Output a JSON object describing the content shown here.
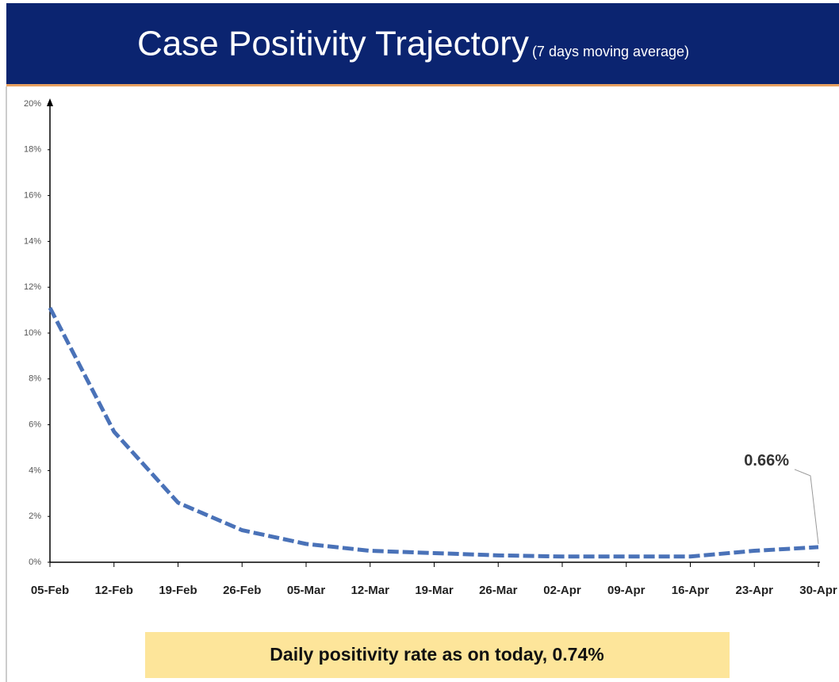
{
  "chart_data": {
    "type": "line",
    "title": "Case Positivity Trajectory",
    "subtitle": "(7 days moving average)",
    "categories": [
      "05-Feb",
      "12-Feb",
      "19-Feb",
      "26-Feb",
      "05-Mar",
      "12-Mar",
      "19-Mar",
      "26-Mar",
      "02-Apr",
      "09-Apr",
      "16-Apr",
      "23-Apr",
      "30-Apr"
    ],
    "series": [
      {
        "name": "Case Positivity",
        "color": "#4a72b8",
        "values": [
          11.1,
          5.7,
          2.6,
          1.4,
          0.8,
          0.5,
          0.4,
          0.3,
          0.25,
          0.25,
          0.25,
          0.5,
          0.66
        ],
        "value_labels": [
          null,
          null,
          null,
          null,
          null,
          null,
          null,
          null,
          null,
          null,
          null,
          null,
          "0.66%"
        ]
      }
    ],
    "ylim": [
      0,
      20
    ],
    "yticks": [
      {
        "value": 0,
        "label": "0%"
      },
      {
        "value": 2,
        "label": "2%"
      },
      {
        "value": 4,
        "label": "4%"
      },
      {
        "value": 6,
        "label": "6%"
      },
      {
        "value": 8,
        "label": "8%"
      },
      {
        "value": 10,
        "label": "10%"
      },
      {
        "value": 12,
        "label": "12%"
      },
      {
        "value": 14,
        "label": "14%"
      },
      {
        "value": 16,
        "label": "16%"
      },
      {
        "value": 18,
        "label": "18%"
      },
      {
        "value": 20,
        "label": "20%"
      }
    ],
    "annotation": "Daily positivity rate as on today, 0.74%"
  }
}
